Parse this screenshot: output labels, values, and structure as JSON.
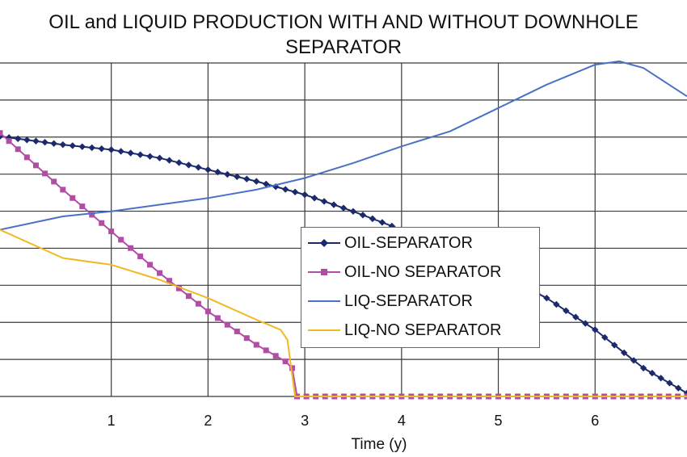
{
  "chart_data": {
    "type": "line",
    "title_line1": "OIL and LIQUID PRODUCTION WITH AND WITHOUT DOWNHOLE",
    "title_line2": "SEPARATOR",
    "xlabel": "Time (y)",
    "ylabel": "",
    "x_ticks": [
      "1",
      "2",
      "3",
      "4",
      "5",
      "6"
    ],
    "xlim": [
      -0.15,
      6.95
    ],
    "ylim": [
      0,
      10
    ],
    "grid": true,
    "legend_position": "center",
    "series": [
      {
        "name": "OIL-SEPARATOR",
        "color": "#1c2a6b",
        "marker": "diamond",
        "points": [
          [
            -0.15,
            7.8
          ],
          [
            0.5,
            7.55
          ],
          [
            1.0,
            7.4
          ],
          [
            1.5,
            7.15
          ],
          [
            2.0,
            6.8
          ],
          [
            2.5,
            6.45
          ],
          [
            3.0,
            6.05
          ],
          [
            3.5,
            5.55
          ],
          [
            4.0,
            5.0
          ],
          [
            4.5,
            4.4
          ],
          [
            5.0,
            3.7
          ],
          [
            5.5,
            2.95
          ],
          [
            6.0,
            2.0
          ],
          [
            6.5,
            0.85
          ],
          [
            6.95,
            0.1
          ]
        ]
      },
      {
        "name": "OIL-NO SEPARATOR",
        "color": "#b04ea6",
        "marker": "square",
        "points": [
          [
            -0.15,
            7.9
          ],
          [
            0.5,
            6.2
          ],
          [
            1.0,
            4.95
          ],
          [
            1.5,
            3.7
          ],
          [
            2.0,
            2.55
          ],
          [
            2.5,
            1.55
          ],
          [
            2.8,
            1.05
          ],
          [
            2.87,
            0.85
          ],
          [
            2.92,
            0.0
          ],
          [
            3.5,
            0.0
          ],
          [
            4.0,
            0.0
          ],
          [
            5.0,
            0.0
          ],
          [
            6.0,
            0.0
          ],
          [
            6.95,
            0.0
          ]
        ]
      },
      {
        "name": "LIQ-SEPARATOR",
        "color": "#4a72c4",
        "marker": "none",
        "points": [
          [
            -0.15,
            5.0
          ],
          [
            0.5,
            5.4
          ],
          [
            1.0,
            5.55
          ],
          [
            1.5,
            5.75
          ],
          [
            2.0,
            5.95
          ],
          [
            2.5,
            6.2
          ],
          [
            3.0,
            6.55
          ],
          [
            3.5,
            7.0
          ],
          [
            4.0,
            7.5
          ],
          [
            4.5,
            7.95
          ],
          [
            5.0,
            8.65
          ],
          [
            5.5,
            9.35
          ],
          [
            6.0,
            9.95
          ],
          [
            6.25,
            10.05
          ],
          [
            6.5,
            9.85
          ],
          [
            6.95,
            9.0
          ]
        ]
      },
      {
        "name": "LIQ-NO SEPARATOR",
        "color": "#f2b822",
        "marker": "none",
        "points": [
          [
            -0.15,
            5.0
          ],
          [
            0.5,
            4.15
          ],
          [
            1.0,
            3.95
          ],
          [
            1.5,
            3.5
          ],
          [
            2.0,
            2.95
          ],
          [
            2.5,
            2.3
          ],
          [
            2.75,
            2.0
          ],
          [
            2.82,
            1.7
          ],
          [
            2.9,
            0.0
          ],
          [
            3.5,
            0.0
          ],
          [
            4.0,
            0.0
          ],
          [
            5.0,
            0.0
          ],
          [
            6.0,
            0.0
          ],
          [
            6.95,
            0.0
          ]
        ]
      }
    ]
  }
}
